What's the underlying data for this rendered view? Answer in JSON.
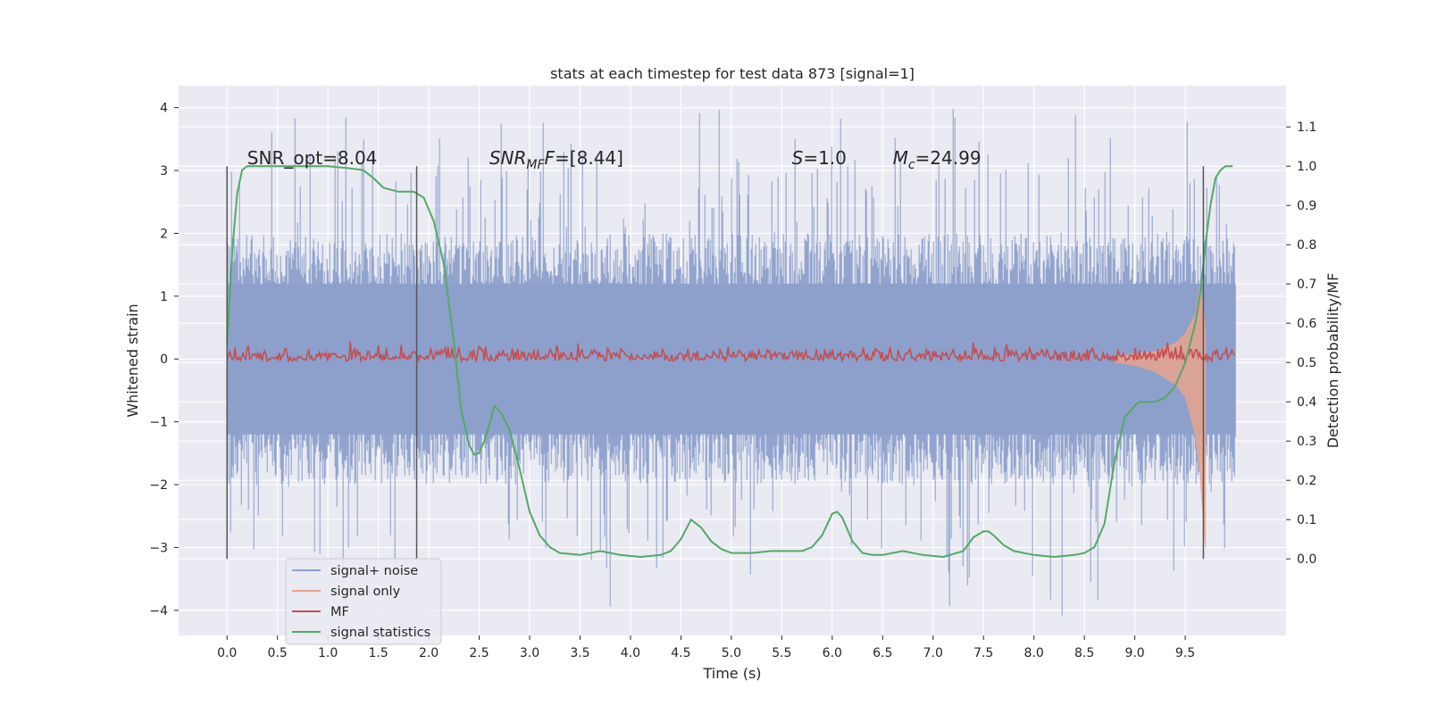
{
  "chart_data": {
    "type": "line",
    "title": "stats at each timestep for test data 873 [signal=1]",
    "xlabel": "Time (s)",
    "ylabel": "Whitened strain",
    "y2label": "Detection probability/MF",
    "xlim": [
      -0.48,
      10.5
    ],
    "ylim": [
      -4.4,
      4.35
    ],
    "y2lim": [
      -0.195,
      1.205
    ],
    "xticks": [
      0.0,
      0.5,
      1.0,
      1.5,
      2.0,
      2.5,
      3.0,
      3.5,
      4.0,
      4.5,
      5.0,
      5.5,
      6.0,
      6.5,
      7.0,
      7.5,
      8.0,
      8.5,
      9.0,
      9.5
    ],
    "xtick_labels": [
      "0.0",
      "0.5",
      "1.0",
      "1.5",
      "2.0",
      "2.5",
      "3.0",
      "3.5",
      "4.0",
      "4.5",
      "5.0",
      "5.5",
      "6.0",
      "6.5",
      "7.0",
      "7.5",
      "8.0",
      "8.5",
      "9.0",
      "9.5"
    ],
    "yticks": [
      -4,
      -3,
      -2,
      -1,
      0,
      1,
      2,
      3,
      4
    ],
    "ytick_labels": [
      "−4",
      "−3",
      "−2",
      "−1",
      "0",
      "1",
      "2",
      "3",
      "4"
    ],
    "y2ticks": [
      0.0,
      0.1,
      0.2,
      0.3,
      0.4,
      0.5,
      0.6,
      0.7,
      0.8,
      0.9,
      1.0,
      1.1
    ],
    "y2tick_labels": [
      "0.0",
      "0.1",
      "0.2",
      "0.3",
      "0.4",
      "0.5",
      "0.6",
      "0.7",
      "0.8",
      "0.9",
      "1.0",
      "1.1"
    ],
    "grid": true,
    "legend_position": "lower-left",
    "annotations": [
      {
        "text": "SNR_opt=8.04",
        "x": 0.2,
        "y": 3.1
      },
      {
        "text": "SNR_MF=[8.44]",
        "x": 2.6,
        "y": 3.1
      },
      {
        "text": "S=1.0",
        "x": 5.6,
        "y": 3.1
      },
      {
        "text": "M_c=24.99",
        "x": 6.6,
        "y": 3.1
      }
    ],
    "vertical_markers_s": [
      0.0,
      1.88,
      9.68
    ],
    "series": [
      {
        "name": "signal+ noise",
        "color": "#8da0cb",
        "axis": "left",
        "time_range": [
          0.0,
          10.0
        ],
        "amplitude_range": [
          -4.2,
          4.0
        ]
      },
      {
        "name": "signal only",
        "color": "#e8a48e",
        "axis": "left",
        "x": [
          8.8,
          9.0,
          9.2,
          9.4,
          9.5,
          9.6,
          9.65,
          9.7
        ],
        "y_upper": [
          0.05,
          0.08,
          0.12,
          0.25,
          0.4,
          0.7,
          1.2,
          0.5
        ],
        "y_lower": [
          -0.05,
          -0.1,
          -0.2,
          -0.4,
          -0.6,
          -1.2,
          -1.9,
          -3.0
        ]
      },
      {
        "name": "MF",
        "color": "#c44e52",
        "axis": "right",
        "time_range": [
          0.0,
          10.0
        ],
        "level_range": [
          0.5,
          0.58
        ]
      },
      {
        "name": "signal statistics",
        "color": "#55a868",
        "axis": "right",
        "x": [
          0.0,
          0.05,
          0.1,
          0.15,
          0.2,
          0.3,
          0.5,
          0.8,
          1.0,
          1.2,
          1.35,
          1.45,
          1.55,
          1.7,
          1.85,
          1.95,
          2.05,
          2.15,
          2.25,
          2.32,
          2.4,
          2.45,
          2.5,
          2.55,
          2.6,
          2.65,
          2.72,
          2.8,
          2.9,
          3.0,
          3.1,
          3.2,
          3.3,
          3.5,
          3.7,
          3.9,
          4.1,
          4.3,
          4.4,
          4.5,
          4.6,
          4.7,
          4.8,
          4.9,
          5.0,
          5.2,
          5.4,
          5.7,
          5.8,
          5.9,
          6.0,
          6.05,
          6.1,
          6.2,
          6.3,
          6.4,
          6.5,
          6.7,
          6.9,
          7.1,
          7.3,
          7.4,
          7.5,
          7.55,
          7.6,
          7.7,
          7.8,
          7.9,
          8.0,
          8.2,
          8.4,
          8.5,
          8.6,
          8.7,
          8.8,
          8.9,
          9.0,
          9.05,
          9.1,
          9.2,
          9.3,
          9.4,
          9.5,
          9.55,
          9.6,
          9.65,
          9.7,
          9.75,
          9.8,
          9.85,
          9.9,
          9.97
        ],
        "y": [
          0.55,
          0.78,
          0.93,
          0.99,
          1.0,
          1.0,
          1.0,
          1.0,
          1.0,
          0.995,
          0.99,
          0.97,
          0.945,
          0.935,
          0.935,
          0.92,
          0.86,
          0.75,
          0.55,
          0.38,
          0.29,
          0.265,
          0.27,
          0.3,
          0.34,
          0.39,
          0.37,
          0.33,
          0.23,
          0.12,
          0.06,
          0.03,
          0.015,
          0.01,
          0.02,
          0.01,
          0.005,
          0.01,
          0.02,
          0.05,
          0.1,
          0.08,
          0.045,
          0.025,
          0.015,
          0.015,
          0.02,
          0.02,
          0.03,
          0.06,
          0.115,
          0.12,
          0.105,
          0.045,
          0.015,
          0.01,
          0.01,
          0.02,
          0.01,
          0.005,
          0.02,
          0.055,
          0.07,
          0.07,
          0.06,
          0.035,
          0.02,
          0.015,
          0.01,
          0.005,
          0.01,
          0.015,
          0.03,
          0.09,
          0.25,
          0.36,
          0.39,
          0.4,
          0.4,
          0.4,
          0.41,
          0.44,
          0.5,
          0.55,
          0.6,
          0.68,
          0.8,
          0.9,
          0.97,
          0.99,
          1.0,
          1.0
        ]
      }
    ]
  }
}
